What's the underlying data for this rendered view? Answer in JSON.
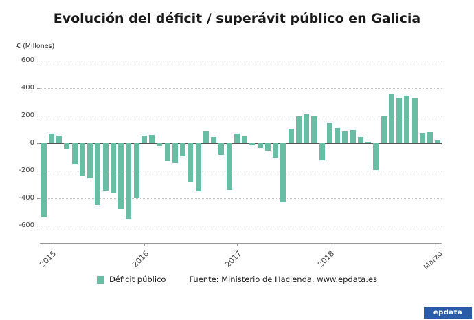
{
  "title": "Evolución del déficit / superávit público en Galicia",
  "y_axis_unit": "€ (Millones)",
  "legend": {
    "deficit_label": "Déficit público"
  },
  "source_text": "Fuente: Ministerio de Hacienda, www.epdata.es",
  "logo_text": "epdata",
  "colors": {
    "bar": "#68BDA2",
    "logo_bg": "#2B5CA7",
    "zero_line": "#555555",
    "grid": "#C9C9C9"
  },
  "chart_data": {
    "type": "bar",
    "title": "Evolución del déficit / superávit público en Galicia",
    "ylabel": "€ (Millones)",
    "series_name": "Déficit público",
    "ylim": [
      -600,
      600
    ],
    "yticks": [
      600,
      400,
      200,
      0,
      -200,
      -400,
      -600
    ],
    "x_tick_labels": [
      "2015",
      "2016",
      "2017",
      "2018",
      "Marzo"
    ],
    "x_tick_indices": [
      1,
      13,
      25,
      37,
      51
    ],
    "grid": "horizontal-dotted",
    "legend_position": "bottom",
    "values": [
      -540,
      70,
      55,
      -40,
      -155,
      -240,
      -255,
      -450,
      -345,
      -360,
      -480,
      -550,
      -400,
      55,
      60,
      -20,
      -130,
      -145,
      -95,
      -280,
      -350,
      85,
      45,
      -85,
      -340,
      70,
      50,
      -15,
      -35,
      -55,
      -105,
      -430,
      105,
      195,
      210,
      200,
      -125,
      145,
      110,
      85,
      95,
      45,
      10,
      -195,
      200,
      360,
      330,
      345,
      325,
      75,
      80,
      20
    ]
  }
}
